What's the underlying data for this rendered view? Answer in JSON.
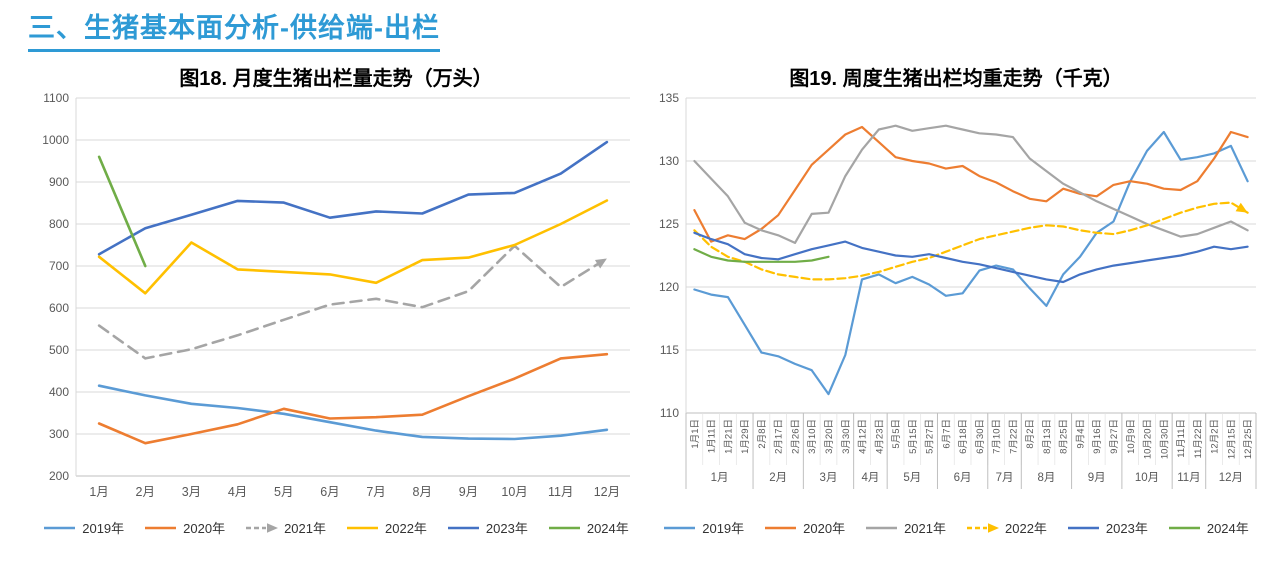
{
  "page": {
    "title": "三、生猪基本面分析-供给端-出栏",
    "title_color": "#2E9AD5"
  },
  "chart_data": [
    {
      "type": "line",
      "title": "图18. 月度生猪出栏量走势（万头）",
      "xlabel": "",
      "ylabel": "",
      "ylim": [
        200,
        1100
      ],
      "ytick_step": 100,
      "grid": true,
      "legend_position": "bottom",
      "categories": [
        "1月",
        "2月",
        "3月",
        "4月",
        "5月",
        "6月",
        "7月",
        "8月",
        "9月",
        "10月",
        "11月",
        "12月"
      ],
      "series": [
        {
          "name": "2019年",
          "color": "#5B9BD5",
          "dash": false,
          "arrow": false,
          "values": [
            415,
            392,
            372,
            362,
            348,
            328,
            308,
            293,
            289,
            288,
            296,
            310
          ]
        },
        {
          "name": "2020年",
          "color": "#ED7D31",
          "dash": false,
          "arrow": false,
          "values": [
            325,
            278,
            300,
            323,
            360,
            337,
            340,
            346,
            390,
            432,
            480,
            490
          ]
        },
        {
          "name": "2021年",
          "color": "#A5A5A5",
          "dash": true,
          "arrow": true,
          "values": [
            558,
            480,
            502,
            535,
            572,
            608,
            622,
            602,
            640,
            748,
            650,
            718
          ]
        },
        {
          "name": "2022年",
          "color": "#FFC000",
          "dash": false,
          "arrow": false,
          "values": [
            722,
            635,
            756,
            692,
            686,
            680,
            660,
            714,
            720,
            750,
            800,
            856
          ]
        },
        {
          "name": "2023年",
          "color": "#4472C4",
          "dash": false,
          "arrow": false,
          "values": [
            728,
            790,
            822,
            855,
            851,
            815,
            830,
            825,
            870,
            874,
            920,
            995
          ]
        },
        {
          "name": "2024年",
          "color": "#70AD47",
          "dash": false,
          "arrow": false,
          "values": [
            960,
            700,
            null,
            null,
            null,
            null,
            null,
            null,
            null,
            null,
            null,
            null
          ]
        }
      ]
    },
    {
      "type": "line",
      "title": "图19. 周度生猪出栏均重走势（千克）",
      "xlabel": "",
      "ylabel": "",
      "ylim": [
        110,
        135
      ],
      "ytick_step": 5,
      "grid": true,
      "legend_position": "bottom",
      "categories": [
        "1月1日",
        "1月11日",
        "1月21日",
        "1月29日",
        "2月8日",
        "2月17日",
        "2月26日",
        "3月10日",
        "3月20日",
        "3月30日",
        "4月12日",
        "4月23日",
        "5月5日",
        "5月15日",
        "5月27日",
        "6月7日",
        "6月18日",
        "6月30日",
        "7月10日",
        "7月22日",
        "8月2日",
        "8月13日",
        "8月25日",
        "9月4日",
        "9月16日",
        "9月27日",
        "10月9日",
        "10月20日",
        "10月30日",
        "11月11日",
        "11月22日",
        "12月2日",
        "12月15日",
        "12月25日"
      ],
      "month_groups": [
        {
          "label": "1月",
          "count": 4
        },
        {
          "label": "2月",
          "count": 3
        },
        {
          "label": "3月",
          "count": 3
        },
        {
          "label": "4月",
          "count": 2
        },
        {
          "label": "5月",
          "count": 3
        },
        {
          "label": "6月",
          "count": 3
        },
        {
          "label": "7月",
          "count": 2
        },
        {
          "label": "8月",
          "count": 3
        },
        {
          "label": "9月",
          "count": 3
        },
        {
          "label": "10月",
          "count": 3
        },
        {
          "label": "11月",
          "count": 2
        },
        {
          "label": "12月",
          "count": 3
        }
      ],
      "series": [
        {
          "name": "2019年",
          "color": "#5B9BD5",
          "dash": false,
          "arrow": false,
          "values": [
            119.8,
            119.4,
            119.2,
            117.0,
            114.8,
            114.5,
            113.9,
            113.4,
            111.5,
            114.6,
            120.6,
            121.0,
            120.3,
            120.8,
            120.2,
            119.3,
            119.5,
            121.3,
            121.7,
            121.4,
            119.9,
            118.5,
            121.0,
            122.4,
            124.3,
            125.2,
            128.4,
            130.8,
            132.3,
            130.1,
            130.3,
            130.6,
            131.2,
            128.4
          ]
        },
        {
          "name": "2020年",
          "color": "#ED7D31",
          "dash": false,
          "arrow": false,
          "values": [
            126.1,
            123.6,
            124.1,
            123.8,
            124.6,
            125.7,
            127.7,
            129.7,
            130.9,
            132.1,
            132.7,
            131.5,
            130.3,
            130.0,
            129.8,
            129.4,
            129.6,
            128.8,
            128.3,
            127.6,
            127.0,
            126.8,
            127.8,
            127.4,
            127.2,
            128.1,
            128.4,
            128.2,
            127.8,
            127.7,
            128.4,
            130.2,
            132.3,
            131.9
          ]
        },
        {
          "name": "2021年",
          "color": "#A5A5A5",
          "dash": false,
          "arrow": false,
          "values": [
            130.0,
            128.6,
            127.2,
            125.1,
            124.5,
            124.1,
            123.5,
            125.8,
            125.9,
            128.8,
            130.9,
            132.5,
            132.8,
            132.4,
            132.6,
            132.8,
            132.5,
            132.2,
            132.1,
            131.9,
            130.2,
            129.2,
            128.2,
            127.5,
            126.8,
            126.2,
            125.6,
            125.0,
            124.5,
            124.0,
            124.2,
            124.7,
            125.2,
            124.5
          ]
        },
        {
          "name": "2022年",
          "color": "#FFC000",
          "dash": true,
          "arrow": true,
          "values": [
            124.5,
            123.2,
            122.4,
            122.0,
            121.4,
            121.0,
            120.8,
            120.6,
            120.6,
            120.7,
            120.9,
            121.2,
            121.6,
            122.0,
            122.3,
            122.8,
            123.3,
            123.8,
            124.1,
            124.4,
            124.7,
            124.9,
            124.8,
            124.5,
            124.3,
            124.2,
            124.5,
            124.9,
            125.4,
            125.9,
            126.3,
            126.6,
            126.7,
            125.9
          ]
        },
        {
          "name": "2023年",
          "color": "#4472C4",
          "dash": false,
          "arrow": false,
          "values": [
            124.3,
            123.8,
            123.4,
            122.6,
            122.3,
            122.2,
            122.6,
            123.0,
            123.3,
            123.6,
            123.1,
            122.8,
            122.5,
            122.4,
            122.6,
            122.3,
            122.0,
            121.8,
            121.5,
            121.2,
            120.9,
            120.6,
            120.4,
            121.0,
            121.4,
            121.7,
            121.9,
            122.1,
            122.3,
            122.5,
            122.8,
            123.2,
            123.0,
            123.2
          ]
        },
        {
          "name": "2024年",
          "color": "#70AD47",
          "dash": false,
          "arrow": false,
          "values": [
            123.0,
            122.4,
            122.1,
            122.0,
            122.0,
            122.0,
            122.0,
            122.1,
            122.4,
            null,
            null,
            null,
            null,
            null,
            null,
            null,
            null,
            null,
            null,
            null,
            null,
            null,
            null,
            null,
            null,
            null,
            null,
            null,
            null,
            null,
            null,
            null,
            null,
            null
          ]
        }
      ]
    }
  ]
}
